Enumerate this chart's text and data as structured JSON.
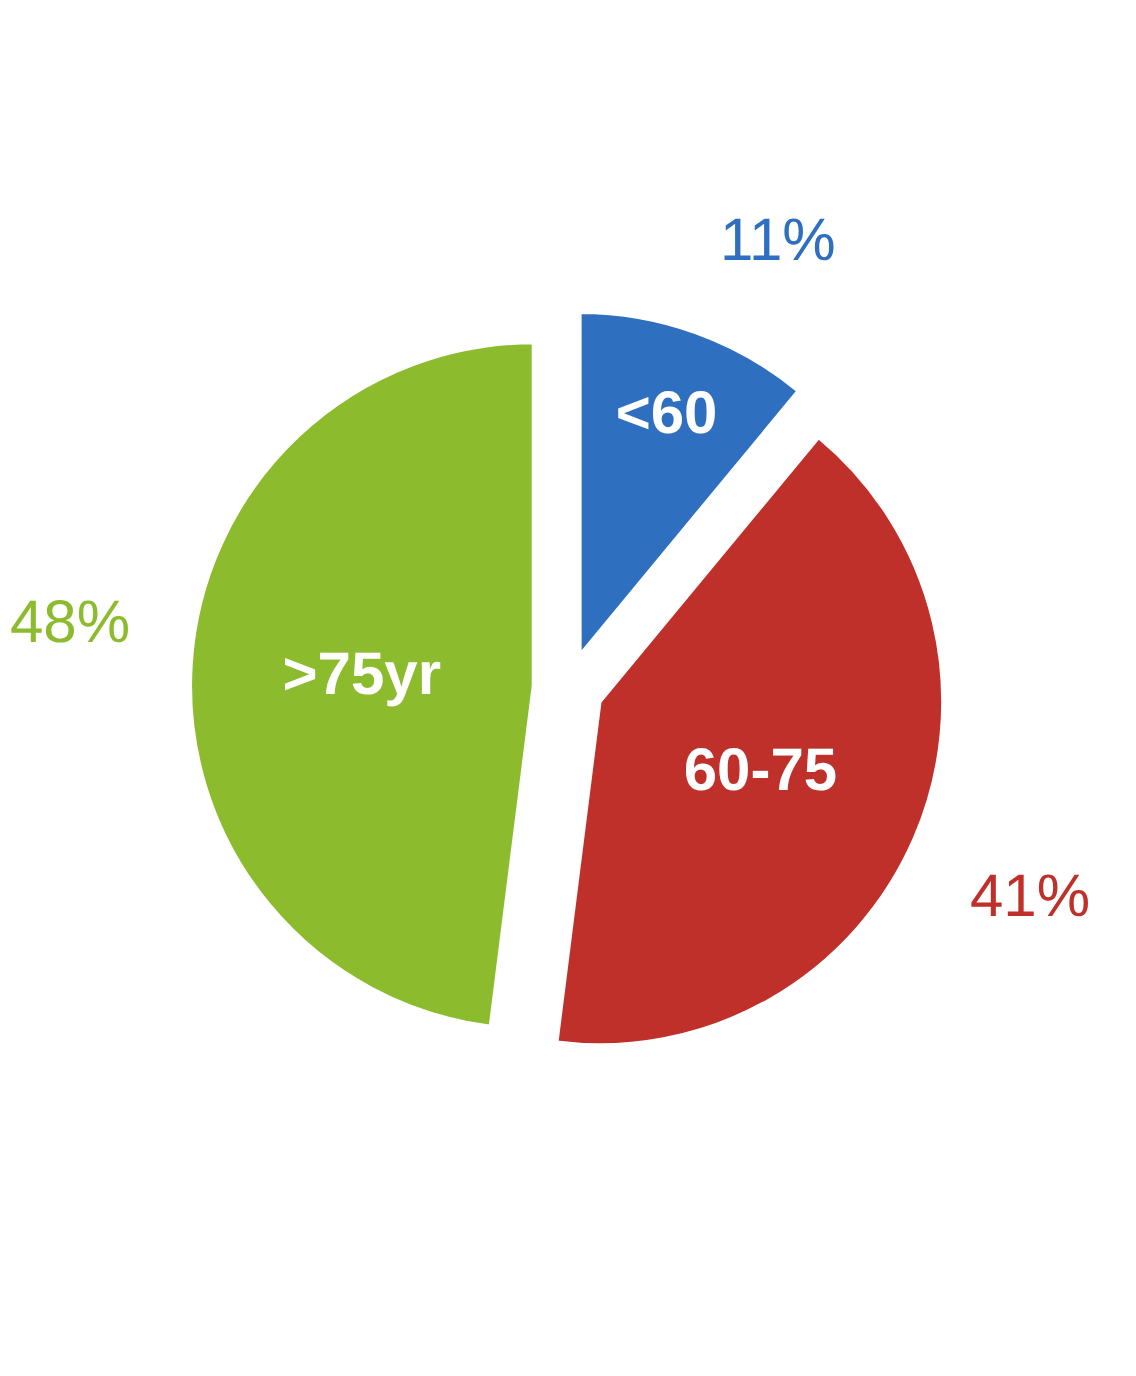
{
  "chart_data": {
    "type": "pie",
    "categories": [
      "<60",
      "60-75",
      ">75yr"
    ],
    "values": [
      11,
      41,
      48
    ],
    "colors": [
      "#2f6fc0",
      "#c0302a",
      "#8cbc2e"
    ],
    "value_labels": [
      "11%",
      "41%",
      "48%"
    ],
    "legend": false
  }
}
